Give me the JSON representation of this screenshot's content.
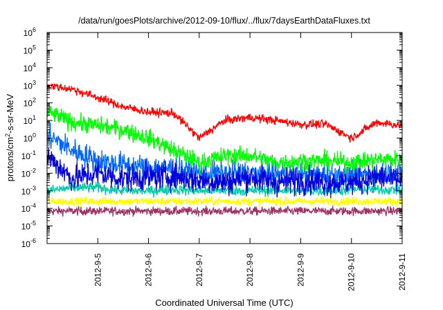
{
  "chart_data": {
    "type": "line",
    "title": "/data/run/goesPlots/archive/2012-09-10/flux/../flux/7daysEarthDataFluxes.txt",
    "xlabel": "Coordinated Universal Time (UTC)",
    "ylabel_parts": [
      "protons/cm",
      "2",
      "-s-sr-MeV"
    ],
    "y_scale": "log",
    "ylim": [
      1e-06,
      1000000.0
    ],
    "y_ticks": [
      {
        "mant": "10",
        "exp": "-6",
        "value": 1e-06
      },
      {
        "mant": "10",
        "exp": "-5",
        "value": 1e-05
      },
      {
        "mant": "10",
        "exp": "-4",
        "value": 0.0001
      },
      {
        "mant": "10",
        "exp": "-3",
        "value": 0.001
      },
      {
        "mant": "10",
        "exp": "-2",
        "value": 0.01
      },
      {
        "mant": "10",
        "exp": "-1",
        "value": 0.1
      },
      {
        "mant": "10",
        "exp": "0",
        "value": 1
      },
      {
        "mant": "10",
        "exp": "1",
        "value": 10
      },
      {
        "mant": "10",
        "exp": "2",
        "value": 100
      },
      {
        "mant": "10",
        "exp": "3",
        "value": 1000
      },
      {
        "mant": "10",
        "exp": "4",
        "value": 10000
      },
      {
        "mant": "10",
        "exp": "5",
        "value": 100000
      },
      {
        "mant": "10",
        "exp": "6",
        "value": 1000000
      }
    ],
    "xlim": [
      "2012-09-04",
      "2012-09-11"
    ],
    "x_ticks": [
      "2012-9-5",
      "2012-9-6",
      "2012-9-7",
      "2012-9-8",
      "2012-9-9",
      "2012-9-10",
      "2012-9-11"
    ],
    "x": [
      "2012-09-04",
      "2012-09-04 12:00",
      "2012-09-05",
      "2012-09-05 12:00",
      "2012-09-06",
      "2012-09-06 12:00",
      "2012-09-07",
      "2012-09-07 12:00",
      "2012-09-08",
      "2012-09-08 12:00",
      "2012-09-09",
      "2012-09-09 12:00",
      "2012-09-10",
      "2012-09-10 12:00",
      "2012-09-11"
    ],
    "grid": false,
    "series": [
      {
        "color": "#ff0000",
        "values": [
          1000,
          600,
          200,
          60,
          30,
          25,
          1,
          10,
          15,
          10,
          6,
          6,
          1,
          8,
          5
        ]
      },
      {
        "color": "#00ff00",
        "values": [
          30,
          8,
          5,
          3,
          1,
          0.2,
          0.04,
          0.1,
          0.1,
          0.04,
          0.05,
          0.05,
          0.04,
          0.06,
          0.06
        ]
      },
      {
        "color": "#0066ff",
        "values": [
          1.5,
          0.2,
          0.05,
          0.03,
          0.02,
          0.02,
          0.01,
          0.01,
          0.01,
          0.01,
          0.008,
          0.008,
          0.007,
          0.01,
          0.01
        ]
      },
      {
        "color": "#0000dd",
        "values": [
          0.1,
          0.005,
          0.01,
          0.005,
          0.006,
          0.007,
          0.004,
          0.003,
          0.006,
          0.003,
          0.004,
          0.003,
          0.003,
          0.006,
          0.004
        ]
      },
      {
        "color": "#00ccaa",
        "values": [
          0.001,
          0.0015,
          0.0015,
          0.001,
          0.001,
          0.0012,
          0.001,
          0.0011,
          0.001,
          0.0011,
          0.001,
          0.001,
          0.0012,
          0.0012,
          0.0011
        ]
      },
      {
        "color": "#ffff00",
        "values": [
          0.00025,
          0.00025,
          0.00025,
          0.00025,
          0.00025,
          0.00025,
          0.00025,
          0.00025,
          0.00025,
          0.00025,
          0.00025,
          0.00025,
          0.00025,
          0.00025,
          0.00025
        ]
      },
      {
        "color": "#993366",
        "values": [
          7e-05,
          7e-05,
          7e-05,
          7e-05,
          7e-05,
          7e-05,
          7e-05,
          7e-05,
          7e-05,
          7e-05,
          7e-05,
          7e-05,
          7e-05,
          7e-05,
          7e-05
        ]
      }
    ]
  }
}
